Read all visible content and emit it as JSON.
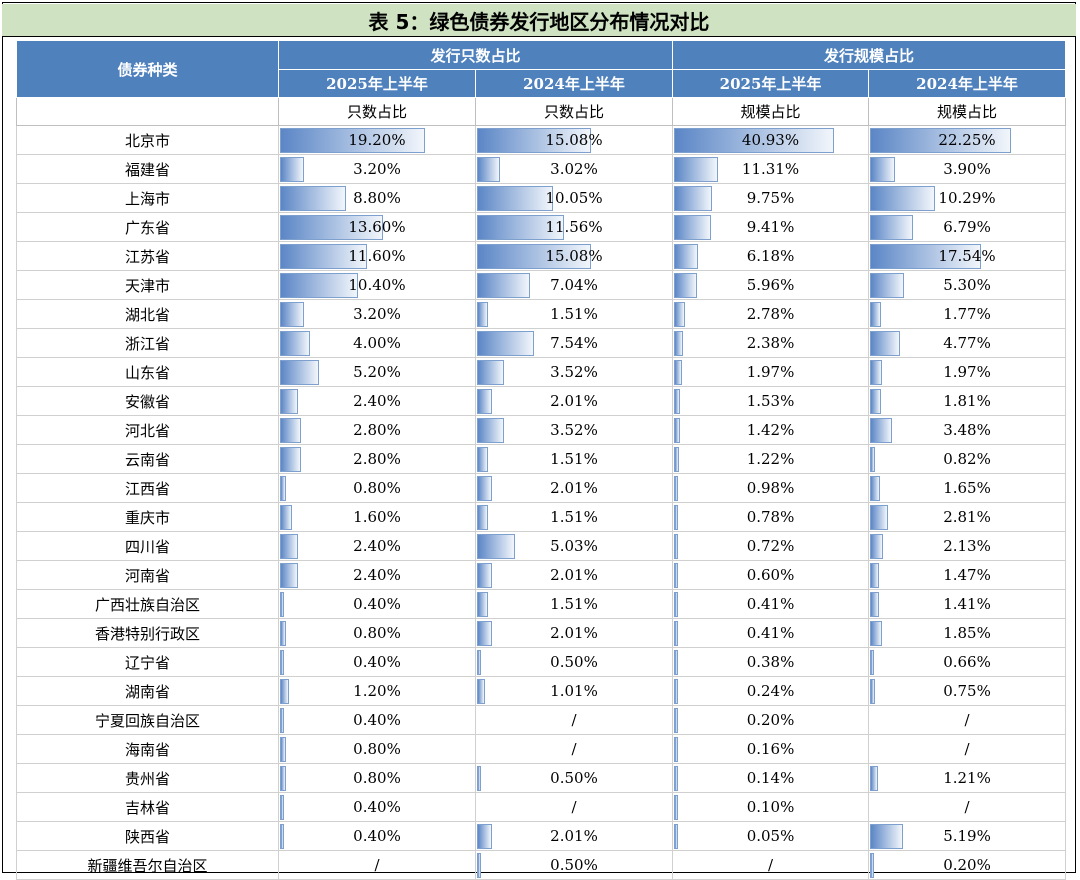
{
  "title": "表 5：绿色债券发行地区分布情况对比",
  "header": {
    "category": "债券种类",
    "group_count": "发行只数占比",
    "group_scale": "发行规模占比",
    "periods": [
      "2025年上半年",
      "2024年上半年",
      "2025年上半年",
      "2024年上半年"
    ],
    "subheaders": [
      "只数占比",
      "只数占比",
      "规模占比",
      "规模占比"
    ]
  },
  "rows": [
    {
      "region": "北京市",
      "v": [
        "19.20%",
        "15.08%",
        "40.93%",
        "22.25%"
      ],
      "n": [
        19.2,
        15.08,
        40.93,
        22.25
      ]
    },
    {
      "region": "福建省",
      "v": [
        "3.20%",
        "3.02%",
        "11.31%",
        "3.90%"
      ],
      "n": [
        3.2,
        3.02,
        11.31,
        3.9
      ]
    },
    {
      "region": "上海市",
      "v": [
        "8.80%",
        "10.05%",
        "9.75%",
        "10.29%"
      ],
      "n": [
        8.8,
        10.05,
        9.75,
        10.29
      ]
    },
    {
      "region": "广东省",
      "v": [
        "13.60%",
        "11.56%",
        "9.41%",
        "6.79%"
      ],
      "n": [
        13.6,
        11.56,
        9.41,
        6.79
      ]
    },
    {
      "region": "江苏省",
      "v": [
        "11.60%",
        "15.08%",
        "6.18%",
        "17.54%"
      ],
      "n": [
        11.6,
        15.08,
        6.18,
        17.54
      ]
    },
    {
      "region": "天津市",
      "v": [
        "10.40%",
        "7.04%",
        "5.96%",
        "5.30%"
      ],
      "n": [
        10.4,
        7.04,
        5.96,
        5.3
      ]
    },
    {
      "region": "湖北省",
      "v": [
        "3.20%",
        "1.51%",
        "2.78%",
        "1.77%"
      ],
      "n": [
        3.2,
        1.51,
        2.78,
        1.77
      ]
    },
    {
      "region": "浙江省",
      "v": [
        "4.00%",
        "7.54%",
        "2.38%",
        "4.77%"
      ],
      "n": [
        4.0,
        7.54,
        2.38,
        4.77
      ]
    },
    {
      "region": "山东省",
      "v": [
        "5.20%",
        "3.52%",
        "1.97%",
        "1.97%"
      ],
      "n": [
        5.2,
        3.52,
        1.97,
        1.97
      ]
    },
    {
      "region": "安徽省",
      "v": [
        "2.40%",
        "2.01%",
        "1.53%",
        "1.81%"
      ],
      "n": [
        2.4,
        2.01,
        1.53,
        1.81
      ]
    },
    {
      "region": "河北省",
      "v": [
        "2.80%",
        "3.52%",
        "1.42%",
        "3.48%"
      ],
      "n": [
        2.8,
        3.52,
        1.42,
        3.48
      ]
    },
    {
      "region": "云南省",
      "v": [
        "2.80%",
        "1.51%",
        "1.22%",
        "0.82%"
      ],
      "n": [
        2.8,
        1.51,
        1.22,
        0.82
      ]
    },
    {
      "region": "江西省",
      "v": [
        "0.80%",
        "2.01%",
        "0.98%",
        "1.65%"
      ],
      "n": [
        0.8,
        2.01,
        0.98,
        1.65
      ]
    },
    {
      "region": "重庆市",
      "v": [
        "1.60%",
        "1.51%",
        "0.78%",
        "2.81%"
      ],
      "n": [
        1.6,
        1.51,
        0.78,
        2.81
      ]
    },
    {
      "region": "四川省",
      "v": [
        "2.40%",
        "5.03%",
        "0.72%",
        "2.13%"
      ],
      "n": [
        2.4,
        5.03,
        0.72,
        2.13
      ]
    },
    {
      "region": "河南省",
      "v": [
        "2.40%",
        "2.01%",
        "0.60%",
        "1.47%"
      ],
      "n": [
        2.4,
        2.01,
        0.6,
        1.47
      ]
    },
    {
      "region": "广西壮族自治区",
      "v": [
        "0.40%",
        "1.51%",
        "0.41%",
        "1.41%"
      ],
      "n": [
        0.4,
        1.51,
        0.41,
        1.41
      ]
    },
    {
      "region": "香港特别行政区",
      "v": [
        "0.80%",
        "2.01%",
        "0.41%",
        "1.85%"
      ],
      "n": [
        0.8,
        2.01,
        0.41,
        1.85
      ]
    },
    {
      "region": "辽宁省",
      "v": [
        "0.40%",
        "0.50%",
        "0.38%",
        "0.66%"
      ],
      "n": [
        0.4,
        0.5,
        0.38,
        0.66
      ]
    },
    {
      "region": "湖南省",
      "v": [
        "1.20%",
        "1.01%",
        "0.24%",
        "0.75%"
      ],
      "n": [
        1.2,
        1.01,
        0.24,
        0.75
      ]
    },
    {
      "region": "宁夏回族自治区",
      "v": [
        "0.40%",
        "/",
        "0.20%",
        "/"
      ],
      "n": [
        0.4,
        0,
        0.2,
        0
      ]
    },
    {
      "region": "海南省",
      "v": [
        "0.80%",
        "/",
        "0.16%",
        "/"
      ],
      "n": [
        0.8,
        0,
        0.16,
        0
      ]
    },
    {
      "region": "贵州省",
      "v": [
        "0.80%",
        "0.50%",
        "0.14%",
        "1.21%"
      ],
      "n": [
        0.8,
        0.5,
        0.14,
        1.21
      ]
    },
    {
      "region": "吉林省",
      "v": [
        "0.40%",
        "/",
        "0.10%",
        "/"
      ],
      "n": [
        0.4,
        0,
        0.1,
        0
      ]
    },
    {
      "region": "陕西省",
      "v": [
        "0.40%",
        "2.01%",
        "0.05%",
        "5.19%"
      ],
      "n": [
        0.4,
        2.01,
        0.05,
        5.19
      ]
    },
    {
      "region": "新疆维吾尔自治区",
      "v": [
        "/",
        "0.50%",
        "/",
        "0.20%"
      ],
      "n": [
        0,
        0.5,
        0,
        0.2
      ]
    }
  ],
  "colors": {
    "header_bg": "#4f81bd",
    "title_bg": "#cfe3c3",
    "bar": "#5b86c6"
  }
}
